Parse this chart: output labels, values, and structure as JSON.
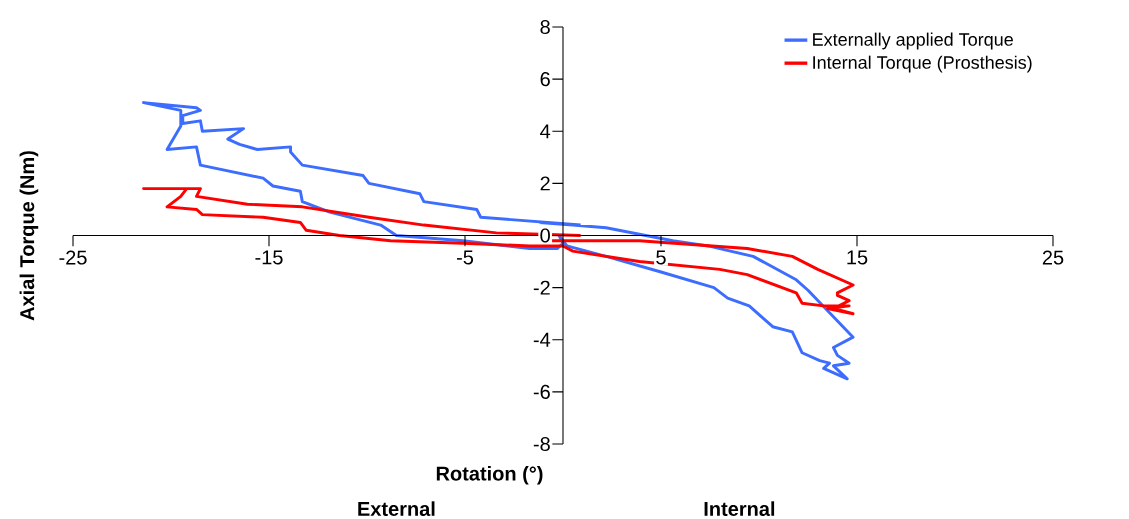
{
  "chart_data": {
    "type": "line",
    "xlabel": "Rotation (°)",
    "ylabel": "Axial Torque (Nm)",
    "xlim": [
      -25,
      25
    ],
    "xticks": [
      -25,
      -15,
      -5,
      5,
      15,
      25
    ],
    "ylim": [
      -8,
      8
    ],
    "yticks": [
      -8,
      -6,
      -4,
      -2,
      0,
      2,
      4,
      6,
      8
    ],
    "grid": false,
    "legend": "top right",
    "marker": "none",
    "line_style": "solid",
    "annotations": [
      "External",
      "Internal"
    ],
    "series": [
      {
        "name": "Externally applied Torque",
        "color": "#3d6dff",
        "x": [
          0.9,
          -4.2,
          -4.4,
          -7.1,
          -7.3,
          -9.9,
          -10.2,
          -13.3,
          -13.9,
          -13.9,
          -15.6,
          -16.5,
          -17.1,
          -16.3,
          -18.4,
          -18.5,
          -19.4,
          -19.4,
          -18.5,
          -18.7,
          -21.4,
          -19.5,
          -19.5,
          -20.2,
          -18.7,
          -18.5,
          -15.3,
          -14.8,
          -13.4,
          -13.3,
          -11.9,
          -9.3,
          -8.5,
          -5.1,
          -1.7,
          -0.3,
          0,
          -0.2,
          0.2,
          2.2,
          5.0,
          7.7,
          8.4,
          9.5,
          10.7,
          11.7,
          12.2,
          13.1,
          13.6,
          13.3,
          14.5,
          13.8,
          14.6,
          14.0,
          13.8,
          14.8,
          12.5,
          11.9,
          9.7,
          7.4,
          5.6,
          2.2,
          0.5,
          -1.2
        ],
        "values": [
          0.4,
          0.7,
          1.0,
          1.3,
          1.6,
          2.0,
          2.3,
          2.7,
          3.2,
          3.4,
          3.3,
          3.5,
          3.7,
          4.1,
          4.0,
          4.4,
          4.3,
          4.6,
          4.8,
          4.9,
          5.1,
          4.8,
          4.2,
          3.3,
          3.4,
          2.7,
          2.2,
          1.9,
          1.7,
          1.3,
          0.9,
          0.4,
          0.0,
          -0.2,
          -0.5,
          -0.5,
          -0.3,
          0.0,
          -0.4,
          -0.8,
          -1.4,
          -2.0,
          -2.4,
          -2.7,
          -3.5,
          -3.7,
          -4.5,
          -4.8,
          -4.9,
          -5.1,
          -5.5,
          -5.0,
          -4.9,
          -4.6,
          -4.3,
          -3.9,
          -2.1,
          -1.7,
          -0.8,
          -0.4,
          -0.2,
          0.3,
          0.4,
          0.5
        ]
      },
      {
        "name": "Internal Torque (Prosthesis)",
        "color": "#ff0000",
        "x": [
          0.9,
          -3.4,
          -7.1,
          -9.9,
          -13.3,
          -16.1,
          -18.7,
          -18.5,
          -21.4,
          -19.2,
          -19.5,
          -20.2,
          -18.7,
          -18.4,
          -15.3,
          -13.4,
          -13.1,
          -11.4,
          -8.8,
          -5.1,
          -1.7,
          0,
          0.5,
          3.9,
          8.0,
          9.4,
          11.9,
          12.2,
          13.3,
          14.6,
          13.5,
          14.8,
          13.8,
          14.6,
          14.0,
          14.0,
          14.8,
          13.0,
          11.7,
          9.4,
          3.9,
          -1.2
        ],
        "values": [
          0.0,
          0.1,
          0.4,
          0.7,
          1.1,
          1.2,
          1.5,
          1.8,
          1.8,
          1.8,
          1.5,
          1.1,
          1.0,
          0.8,
          0.7,
          0.5,
          0.2,
          0.0,
          -0.2,
          -0.3,
          -0.4,
          -0.4,
          -0.6,
          -1.0,
          -1.3,
          -1.5,
          -2.2,
          -2.6,
          -2.7,
          -2.7,
          -2.8,
          -3.0,
          -2.8,
          -2.5,
          -2.3,
          -2.2,
          -1.9,
          -1.3,
          -0.8,
          -0.5,
          -0.2,
          -0.2
        ]
      }
    ]
  }
}
